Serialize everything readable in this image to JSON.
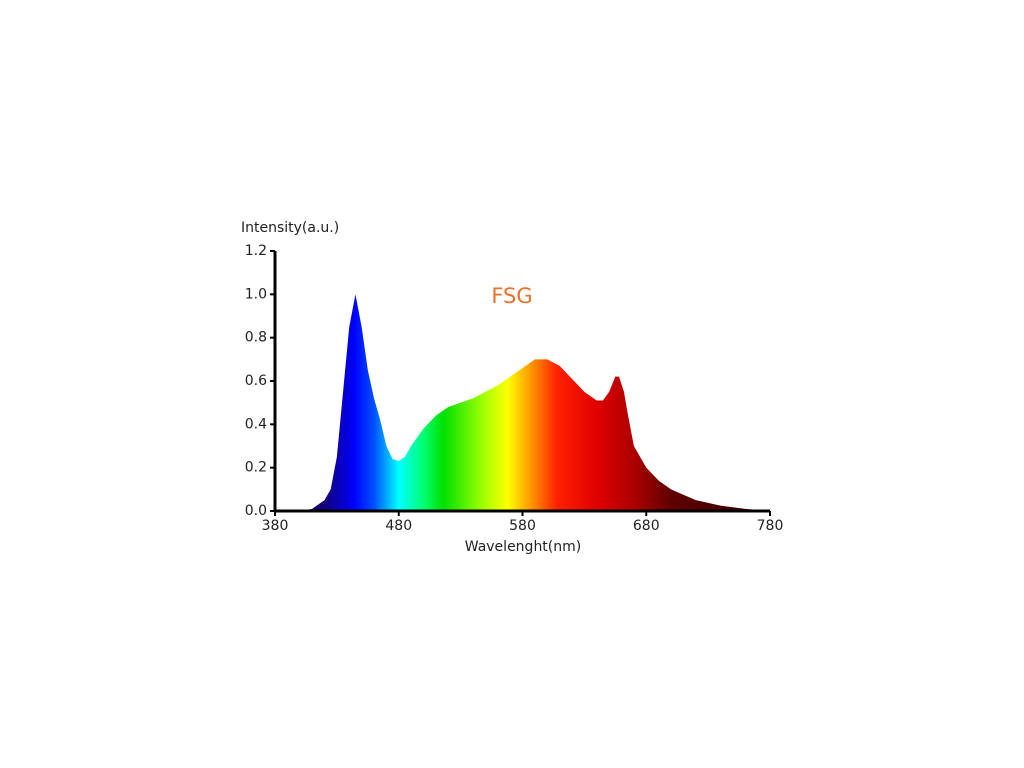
{
  "chart_data": {
    "type": "area",
    "title": "FSG",
    "xlabel": "Wavelenght(nm)",
    "ylabel": "Intensity(a.u.)",
    "x": [
      380,
      400,
      410,
      420,
      425,
      430,
      435,
      440,
      445,
      450,
      455,
      460,
      465,
      470,
      475,
      480,
      485,
      490,
      500,
      510,
      520,
      530,
      540,
      550,
      560,
      570,
      580,
      590,
      600,
      610,
      620,
      630,
      640,
      645,
      650,
      655,
      658,
      662,
      665,
      670,
      680,
      690,
      700,
      720,
      740,
      760,
      780
    ],
    "values": [
      0,
      0,
      0.01,
      0.05,
      0.1,
      0.25,
      0.55,
      0.85,
      1.0,
      0.85,
      0.65,
      0.52,
      0.42,
      0.3,
      0.24,
      0.23,
      0.25,
      0.3,
      0.38,
      0.44,
      0.48,
      0.5,
      0.52,
      0.55,
      0.58,
      0.62,
      0.66,
      0.7,
      0.7,
      0.67,
      0.61,
      0.55,
      0.51,
      0.51,
      0.55,
      0.62,
      0.62,
      0.55,
      0.45,
      0.3,
      0.2,
      0.14,
      0.1,
      0.05,
      0.025,
      0.01,
      0
    ],
    "xlim": [
      380,
      780
    ],
    "xticks": [
      380,
      480,
      580,
      680,
      780
    ],
    "ylim": [
      0,
      1.2
    ],
    "yticks": [
      {
        "value": 0,
        "label": "0.0"
      },
      0.2,
      0.4,
      0.6,
      0.8,
      {
        "value": 1,
        "label": "1.0"
      },
      1.2
    ]
  }
}
